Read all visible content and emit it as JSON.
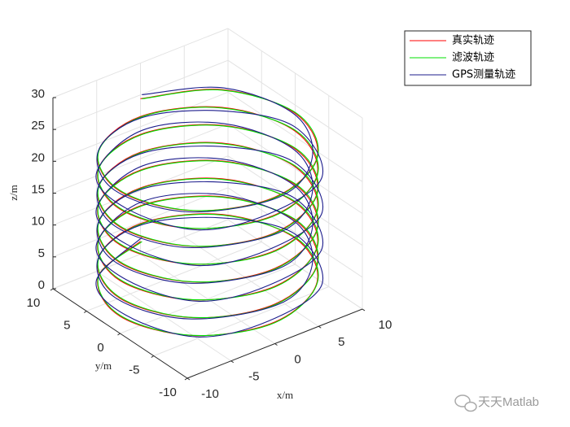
{
  "chart_data": {
    "type": "line3d",
    "xlabel": "x/m",
    "ylabel": "y/m",
    "zlabel": "z/m",
    "xlim": [
      -10,
      10
    ],
    "ylim": [
      -10,
      10
    ],
    "zlim": [
      0,
      30
    ],
    "xticks": [
      -10,
      -5,
      0,
      5,
      10
    ],
    "yticks": [
      -10,
      -5,
      0,
      5,
      10
    ],
    "zticks": [
      0,
      5,
      10,
      15,
      20,
      25,
      30
    ],
    "grid": true,
    "legend": "upper right",
    "watermark": "天天Matlab",
    "series": [
      {
        "name": "真实轨迹",
        "color": "#ff0000",
        "x": [
          0,
          -7.07,
          -10,
          -7.07,
          0,
          7.07,
          10,
          7.07,
          0,
          -7.07,
          -10,
          -7.07,
          0,
          7.07,
          10,
          7.07,
          0,
          -7.07,
          -10,
          -7.07,
          0,
          7.07,
          10,
          7.07,
          0,
          -7.07,
          -10,
          -7.07,
          0,
          7.07,
          10,
          7.07,
          0,
          -7.07,
          -10,
          -7.07,
          0,
          7.07,
          10,
          7.07,
          0,
          -7.07,
          -10,
          -7.07,
          0,
          7.07,
          10,
          7.07,
          0,
          -7.07,
          -10,
          -7.07,
          0,
          7.07,
          10,
          7.07,
          0,
          -7.07,
          -10,
          -7.07,
          0,
          7.07,
          10,
          7.07,
          0
        ],
        "y": [
          10,
          7.07,
          0,
          -7.07,
          -10,
          -7.07,
          0,
          7.07,
          10,
          7.07,
          0,
          -7.07,
          -10,
          -7.07,
          0,
          7.07,
          10,
          7.07,
          0,
          -7.07,
          -10,
          -7.07,
          0,
          7.07,
          10,
          7.07,
          0,
          -7.07,
          -10,
          -7.07,
          0,
          7.07,
          10,
          7.07,
          0,
          -7.07,
          -10,
          -7.07,
          0,
          7.07,
          10,
          7.07,
          0,
          -7.07,
          -10,
          -7.07,
          0,
          7.07,
          10,
          7.07,
          0,
          -7.07,
          -10,
          -7.07,
          0,
          7.07,
          10,
          7.07,
          0,
          -7.07,
          -10,
          -7.07,
          0,
          7.07,
          10
        ],
        "z": [
          2,
          2.35,
          2.7,
          3.05,
          3.4,
          3.75,
          4.1,
          4.45,
          4.8,
          5.15,
          5.5,
          5.85,
          6.2,
          6.55,
          6.9,
          7.25,
          7.6,
          7.95,
          8.3,
          8.65,
          9,
          9.35,
          9.7,
          10.05,
          10.4,
          10.75,
          11.1,
          11.45,
          11.8,
          12.15,
          12.5,
          12.85,
          13.2,
          13.55,
          13.9,
          14.25,
          14.6,
          14.95,
          15.3,
          15.65,
          16,
          16.35,
          16.7,
          17.05,
          17.4,
          17.75,
          18.1,
          18.45,
          18.8,
          19.15,
          19.5,
          19.85,
          20.2,
          20.55,
          20.9,
          21.25,
          21.6,
          21.95,
          22.3,
          22.65,
          23,
          23.35,
          23.7,
          24.05,
          24.4
        ]
      },
      {
        "name": "滤波轨迹",
        "color": "#00e000",
        "x": [
          0.1,
          -7,
          -9.9,
          -7.1,
          -0.1,
          7.1,
          10.1,
          7,
          0.1,
          -7,
          -9.9,
          -7.1,
          -0.1,
          7.1,
          10.1,
          7,
          0.1,
          -7,
          -9.9,
          -7.1,
          -0.1,
          7.1,
          10.1,
          7,
          0.1,
          -7,
          -9.9,
          -7.1,
          -0.1,
          7.1,
          10.1,
          7,
          0.1,
          -7,
          -9.9,
          -7.1,
          -0.1,
          7.1,
          10.1,
          7,
          0.1,
          -7,
          -9.9,
          -7.1,
          -0.1,
          7.1,
          10.1,
          7,
          0.1,
          -7,
          -9.9,
          -7.1,
          -0.1,
          7.1,
          10.1,
          7,
          0.1,
          -7,
          -9.9,
          -7.1,
          -0.1,
          7.1,
          10.1,
          7,
          0.1
        ],
        "y": [
          9.9,
          7.1,
          0.1,
          -7,
          -10.1,
          -7.1,
          -0.1,
          7,
          9.9,
          7.1,
          0.1,
          -7,
          -10.1,
          -7.1,
          -0.1,
          7,
          9.9,
          7.1,
          0.1,
          -7,
          -10.1,
          -7.1,
          -0.1,
          7,
          9.9,
          7.1,
          0.1,
          -7,
          -10.1,
          -7.1,
          -0.1,
          7,
          9.9,
          7.1,
          0.1,
          -7,
          -10.1,
          -7.1,
          -0.1,
          7,
          9.9,
          7.1,
          0.1,
          -7,
          -10.1,
          -7.1,
          -0.1,
          7,
          9.9,
          7.1,
          0.1,
          -7,
          -10.1,
          -7.1,
          -0.1,
          7,
          9.9,
          7.1,
          0.1,
          -7,
          -10.1,
          -7.1,
          -0.1,
          7,
          9.9
        ],
        "z": [
          2,
          2.35,
          2.7,
          3.05,
          3.4,
          3.75,
          4.1,
          4.45,
          4.8,
          5.15,
          5.5,
          5.85,
          6.2,
          6.55,
          6.9,
          7.25,
          7.6,
          7.95,
          8.3,
          8.65,
          9,
          9.35,
          9.7,
          10.05,
          10.4,
          10.75,
          11.1,
          11.45,
          11.8,
          12.15,
          12.5,
          12.85,
          13.2,
          13.55,
          13.9,
          14.25,
          14.6,
          14.95,
          15.3,
          15.65,
          16,
          16.35,
          16.7,
          17.05,
          17.4,
          17.75,
          18.1,
          18.45,
          18.8,
          19.15,
          19.5,
          19.85,
          20.2,
          20.55,
          20.9,
          21.25,
          21.6,
          21.95,
          22.3,
          22.65,
          23,
          23.35,
          23.7,
          24.05,
          24.4
        ]
      },
      {
        "name": "GPS测量轨迹",
        "color": "#1c1c8c",
        "x": [
          0.4,
          -7.5,
          -9.6,
          -6.8,
          -0.5,
          7.4,
          10.3,
          6.7,
          -0.3,
          -6.8,
          -10.4,
          -7.4,
          0.3,
          6.8,
          9.7,
          7.5,
          0.4,
          -7.5,
          -9.6,
          -6.8,
          -0.5,
          7.4,
          10.3,
          6.7,
          -0.3,
          -6.8,
          -10.4,
          -7.4,
          0.3,
          6.8,
          9.7,
          7.5,
          0.4,
          -7.5,
          -9.6,
          -6.8,
          -0.5,
          7.4,
          10.3,
          6.7,
          -0.3,
          -6.8,
          -10.4,
          -7.4,
          0.3,
          6.8,
          9.7,
          7.5,
          0.4,
          -7.5,
          -9.6,
          -6.8,
          -0.5,
          7.4,
          10.3,
          6.7,
          -0.3,
          -6.8,
          -10.4,
          -7.4,
          0.3,
          6.8,
          9.7,
          7.5,
          0.4
        ],
        "y": [
          10.3,
          6.8,
          -0.4,
          -7.3,
          -9.7,
          -7.4,
          0.5,
          6.9,
          9.6,
          7.4,
          0.3,
          -6.8,
          -10.4,
          -6.7,
          -0.3,
          7.4,
          10.3,
          6.8,
          -0.4,
          -7.3,
          -9.7,
          -7.4,
          0.5,
          6.9,
          9.6,
          7.4,
          0.3,
          -6.8,
          -10.4,
          -6.7,
          -0.3,
          7.4,
          10.3,
          6.8,
          -0.4,
          -7.3,
          -9.7,
          -7.4,
          0.5,
          6.9,
          9.6,
          7.4,
          0.3,
          -6.8,
          -10.4,
          -6.7,
          -0.3,
          7.4,
          10.3,
          6.8,
          -0.4,
          -7.3,
          -9.7,
          -7.4,
          0.5,
          6.9,
          9.6,
          7.4,
          0.3,
          -6.8,
          -10.4,
          -6.7,
          -0.3,
          7.4,
          10.3
        ],
        "z": [
          2.2,
          2.15,
          2.9,
          2.85,
          3.6,
          3.55,
          4.3,
          4.25,
          5,
          4.95,
          5.7,
          5.65,
          6.4,
          6.35,
          7.1,
          7.05,
          7.8,
          7.75,
          8.5,
          8.45,
          9.2,
          9.15,
          9.9,
          9.85,
          10.6,
          10.55,
          11.3,
          11.25,
          12,
          11.95,
          12.7,
          12.65,
          13.4,
          13.35,
          14.1,
          14.05,
          14.8,
          14.75,
          15.5,
          15.45,
          16.2,
          16.15,
          16.9,
          16.85,
          17.6,
          17.55,
          18.3,
          18.25,
          19,
          18.95,
          19.7,
          19.65,
          20.4,
          20.35,
          21.1,
          21.05,
          21.8,
          21.75,
          22.5,
          22.45,
          23.2,
          23.15,
          23.9,
          23.85,
          24.6
        ]
      }
    ]
  }
}
